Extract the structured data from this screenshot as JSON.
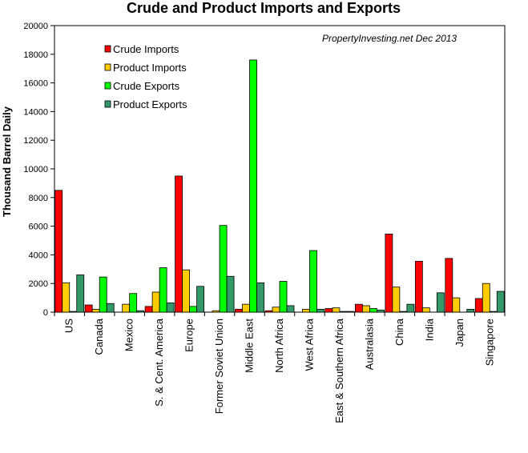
{
  "chart_data": {
    "type": "bar",
    "title": "Crude and Product Imports and Exports",
    "ylabel": "Thousand Barrel Daily",
    "xlabel": "",
    "annotation": "PropertyInvesting.net  Dec 2013",
    "ylim": [
      0,
      20000
    ],
    "yticks": [
      "0",
      "2000",
      "4000",
      "6000",
      "8000",
      "10000",
      "12000",
      "14000",
      "16000",
      "18000",
      "20000"
    ],
    "ytick_values": [
      0,
      2000,
      4000,
      6000,
      8000,
      10000,
      12000,
      14000,
      16000,
      18000,
      20000
    ],
    "legend_position": "top-left",
    "grid": false,
    "categories": [
      "US",
      "Canada",
      "Mexico",
      "S. & Cent. America",
      "Europe",
      "Former Soviet Union",
      "Middle East",
      "North Africa",
      "West Africa",
      "East & Southern Africa",
      "Australasia",
      "China",
      "India",
      "Japan",
      "Singapore"
    ],
    "series": [
      {
        "name": "Crude Imports",
        "color": "#ff0000",
        "values": [
          8500,
          500,
          0,
          400,
          9500,
          0,
          200,
          100,
          0,
          250,
          550,
          5450,
          3550,
          3750,
          950
        ]
      },
      {
        "name": "Product Imports",
        "color": "#ffcc00",
        "values": [
          2050,
          200,
          550,
          1400,
          2950,
          100,
          550,
          350,
          200,
          300,
          450,
          1750,
          300,
          1000,
          2000
        ]
      },
      {
        "name": "Crude Exports",
        "color": "#00ff00",
        "values": [
          50,
          2450,
          1300,
          3100,
          400,
          6050,
          17600,
          2150,
          4300,
          50,
          250,
          50,
          0,
          0,
          50
        ]
      },
      {
        "name": "Product Exports",
        "color": "#339966",
        "values": [
          2600,
          600,
          100,
          650,
          1800,
          2500,
          2050,
          450,
          200,
          50,
          150,
          550,
          1350,
          200,
          1450
        ]
      }
    ]
  }
}
